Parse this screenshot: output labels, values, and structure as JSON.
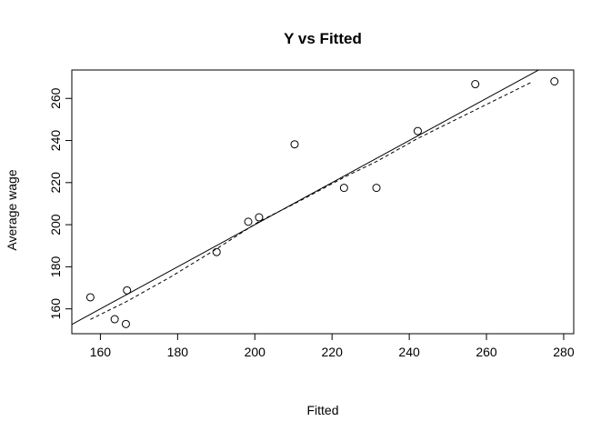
{
  "chart_data": {
    "type": "scatter",
    "title": "Y vs Fitted",
    "xlabel": "Fitted",
    "ylabel": "Average wage",
    "xlim": [
      152.6,
      282.6
    ],
    "ylim": [
      148.2,
      273.5
    ],
    "x_ticks": [
      160,
      180,
      200,
      220,
      240,
      260,
      280
    ],
    "y_ticks": [
      160,
      180,
      200,
      220,
      240,
      260
    ],
    "grid": false,
    "legend": "none",
    "points": [
      {
        "x": 157.4,
        "y": 165.5
      },
      {
        "x": 163.7,
        "y": 155.1
      },
      {
        "x": 166.6,
        "y": 152.8
      },
      {
        "x": 166.9,
        "y": 168.8
      },
      {
        "x": 190.1,
        "y": 187.0
      },
      {
        "x": 198.3,
        "y": 201.4
      },
      {
        "x": 201.1,
        "y": 203.5
      },
      {
        "x": 210.3,
        "y": 238.2
      },
      {
        "x": 223.1,
        "y": 217.5
      },
      {
        "x": 231.5,
        "y": 217.5
      },
      {
        "x": 242.2,
        "y": 244.5
      },
      {
        "x": 257.1,
        "y": 266.8
      },
      {
        "x": 277.6,
        "y": 268.1
      }
    ],
    "reference_line": {
      "style": "solid",
      "color": "#000000",
      "intercept": 0,
      "slope": 1
    },
    "smooth_line": {
      "style": "dashed",
      "color": "#000000",
      "x": [
        157.4,
        166.8,
        178.0,
        190.1,
        201.1,
        210.3,
        223.1,
        231.5,
        242.2,
        257.1,
        272.0
      ],
      "y": [
        155.0,
        163.5,
        175.0,
        188.5,
        201.5,
        210.0,
        222.5,
        230.0,
        241.0,
        254.5,
        268.0
      ]
    }
  }
}
